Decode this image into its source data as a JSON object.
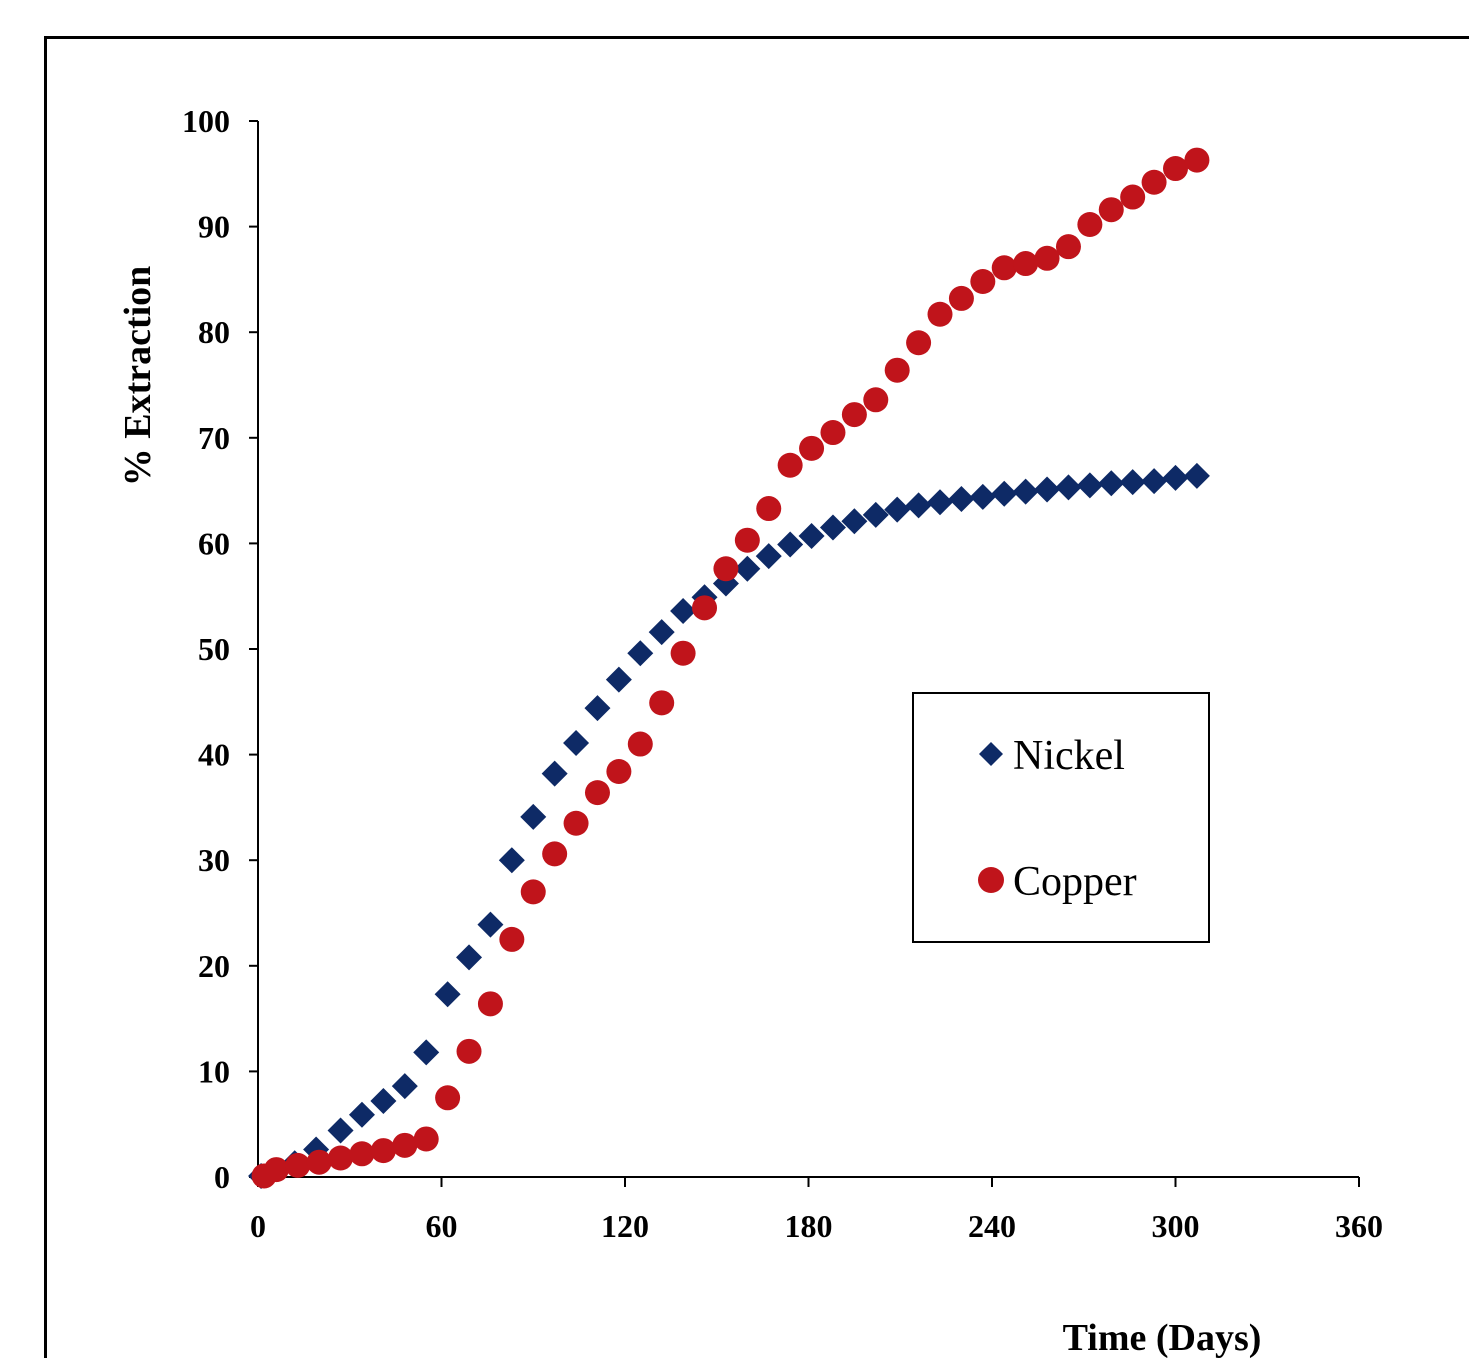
{
  "chart_data": {
    "type": "scatter",
    "title": "",
    "xlabel": "Time (Days)",
    "ylabel": "% Extraction",
    "xlim": [
      0,
      360
    ],
    "ylim": [
      0,
      100
    ],
    "xticks": [
      0,
      60,
      120,
      180,
      240,
      300,
      360
    ],
    "yticks": [
      0,
      10,
      20,
      30,
      40,
      50,
      60,
      70,
      80,
      90,
      100
    ],
    "grid": false,
    "legend_position": "center-right",
    "series": [
      {
        "name": "Nickel",
        "marker": "diamond",
        "color": "#0e2a66",
        "points": [
          [
            1,
            0.1
          ],
          [
            5,
            0.6
          ],
          [
            12,
            1.3
          ],
          [
            19,
            2.6
          ],
          [
            27,
            4.4
          ],
          [
            34,
            5.9
          ],
          [
            41,
            7.2
          ],
          [
            48,
            8.6
          ],
          [
            55,
            11.8
          ],
          [
            62,
            17.3
          ],
          [
            69,
            20.8
          ],
          [
            76,
            23.9
          ],
          [
            83,
            30.0
          ],
          [
            90,
            34.1
          ],
          [
            97,
            38.2
          ],
          [
            104,
            41.1
          ],
          [
            111,
            44.4
          ],
          [
            118,
            47.1
          ],
          [
            125,
            49.6
          ],
          [
            132,
            51.6
          ],
          [
            139,
            53.6
          ],
          [
            146,
            54.9
          ],
          [
            153,
            56.2
          ],
          [
            160,
            57.6
          ],
          [
            167,
            58.8
          ],
          [
            174,
            59.9
          ],
          [
            181,
            60.7
          ],
          [
            188,
            61.5
          ],
          [
            195,
            62.1
          ],
          [
            202,
            62.7
          ],
          [
            209,
            63.2
          ],
          [
            216,
            63.6
          ],
          [
            223,
            63.9
          ],
          [
            230,
            64.2
          ],
          [
            237,
            64.4
          ],
          [
            244,
            64.7
          ],
          [
            251,
            64.9
          ],
          [
            258,
            65.1
          ],
          [
            265,
            65.3
          ],
          [
            272,
            65.5
          ],
          [
            279,
            65.7
          ],
          [
            286,
            65.8
          ],
          [
            293,
            65.9
          ],
          [
            300,
            66.2
          ],
          [
            307,
            66.4
          ]
        ]
      },
      {
        "name": "Copper",
        "marker": "circle",
        "color": "#c0141b",
        "points": [
          [
            2,
            0.1
          ],
          [
            6,
            0.7
          ],
          [
            13,
            1.1
          ],
          [
            20,
            1.4
          ],
          [
            27,
            1.8
          ],
          [
            34,
            2.2
          ],
          [
            41,
            2.5
          ],
          [
            48,
            3.0
          ],
          [
            55,
            3.6
          ],
          [
            62,
            7.5
          ],
          [
            69,
            11.9
          ],
          [
            76,
            16.4
          ],
          [
            83,
            22.5
          ],
          [
            90,
            27.0
          ],
          [
            97,
            30.6
          ],
          [
            104,
            33.5
          ],
          [
            111,
            36.4
          ],
          [
            118,
            38.4
          ],
          [
            125,
            41.0
          ],
          [
            132,
            44.9
          ],
          [
            139,
            49.6
          ],
          [
            146,
            53.9
          ],
          [
            153,
            57.6
          ],
          [
            160,
            60.3
          ],
          [
            167,
            63.3
          ],
          [
            174,
            67.4
          ],
          [
            181,
            69.0
          ],
          [
            188,
            70.5
          ],
          [
            195,
            72.2
          ],
          [
            202,
            73.6
          ],
          [
            209,
            76.4
          ],
          [
            216,
            79.0
          ],
          [
            223,
            81.7
          ],
          [
            230,
            83.2
          ],
          [
            237,
            84.8
          ],
          [
            244,
            86.1
          ],
          [
            251,
            86.5
          ],
          [
            258,
            87.0
          ],
          [
            265,
            88.1
          ],
          [
            272,
            90.2
          ],
          [
            279,
            91.6
          ],
          [
            286,
            92.8
          ],
          [
            293,
            94.2
          ],
          [
            300,
            95.5
          ],
          [
            307,
            96.3
          ]
        ]
      }
    ]
  }
}
